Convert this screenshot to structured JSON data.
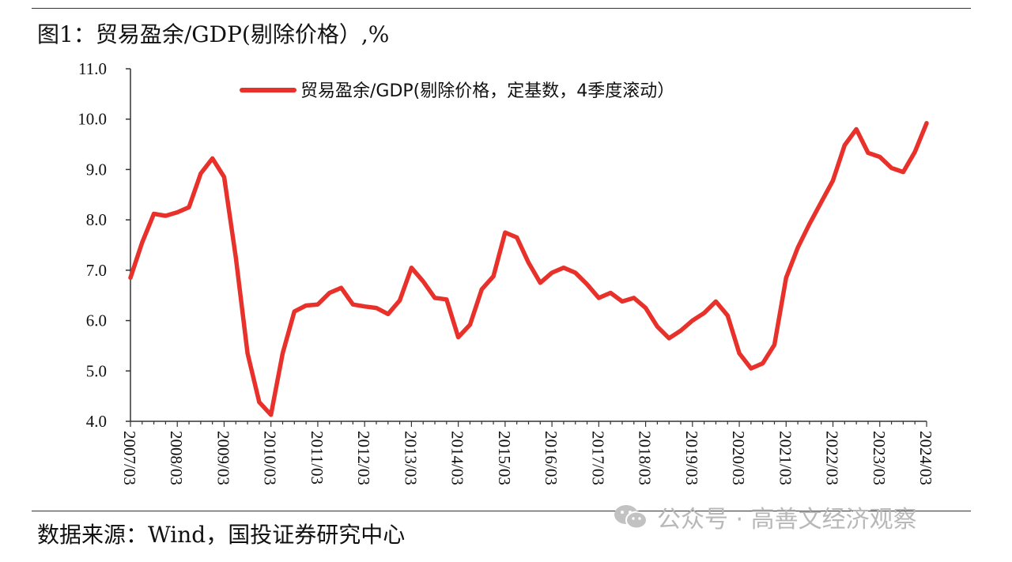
{
  "title": "图1：贸易盈余/GDP(剔除价格）,%",
  "source": "数据来源：Wind，国投证券研究中心",
  "watermark": {
    "text": "公众号 · 高善文经济观察",
    "icon": "wechat-icon"
  },
  "colors": {
    "series": "#e8312a",
    "axis": "#333333",
    "text": "#111111",
    "watermark": "#b8b8b8"
  },
  "chart_data": {
    "type": "line",
    "title": "图1：贸易盈余/GDP(剔除价格）,%",
    "xlabel": "",
    "ylabel": "",
    "ylim": [
      4.0,
      11.0
    ],
    "yticks": [
      "4.0",
      "5.0",
      "6.0",
      "7.0",
      "8.0",
      "9.0",
      "10.0",
      "11.0"
    ],
    "xticks": [
      "2007/03",
      "2008/03",
      "2009/03",
      "2010/03",
      "2011/03",
      "2012/03",
      "2013/03",
      "2014/03",
      "2015/03",
      "2016/03",
      "2017/03",
      "2018/03",
      "2019/03",
      "2020/03",
      "2021/03",
      "2022/03",
      "2023/03",
      "2024/03"
    ],
    "grid": false,
    "legend_position": "top-center",
    "series": [
      {
        "name": "贸易盈余/GDP(剔除价格，定基数，4季度滚动）",
        "color": "#e8312a",
        "x": [
          "2007/03",
          "2007/06",
          "2007/09",
          "2007/12",
          "2008/03",
          "2008/06",
          "2008/09",
          "2008/12",
          "2009/03",
          "2009/06",
          "2009/09",
          "2009/12",
          "2010/03",
          "2010/06",
          "2010/09",
          "2010/12",
          "2011/03",
          "2011/06",
          "2011/09",
          "2011/12",
          "2012/03",
          "2012/06",
          "2012/09",
          "2012/12",
          "2013/03",
          "2013/06",
          "2013/09",
          "2013/12",
          "2014/03",
          "2014/06",
          "2014/09",
          "2014/12",
          "2015/03",
          "2015/06",
          "2015/09",
          "2015/12",
          "2016/03",
          "2016/06",
          "2016/09",
          "2016/12",
          "2017/03",
          "2017/06",
          "2017/09",
          "2017/12",
          "2018/03",
          "2018/06",
          "2018/09",
          "2018/12",
          "2019/03",
          "2019/06",
          "2019/09",
          "2019/12",
          "2020/03",
          "2020/06",
          "2020/09",
          "2020/12",
          "2021/03",
          "2021/06",
          "2021/09",
          "2021/12",
          "2022/03",
          "2022/06",
          "2022/09",
          "2022/12",
          "2023/03",
          "2023/06",
          "2023/09",
          "2023/12",
          "2024/03"
        ],
        "values": [
          6.85,
          7.55,
          8.12,
          8.08,
          8.15,
          8.25,
          8.92,
          9.22,
          8.85,
          7.25,
          5.35,
          4.38,
          4.13,
          5.35,
          6.18,
          6.3,
          6.32,
          6.55,
          6.65,
          6.32,
          6.28,
          6.25,
          6.13,
          6.4,
          7.05,
          6.78,
          6.45,
          6.42,
          5.67,
          5.92,
          6.62,
          6.88,
          7.75,
          7.65,
          7.15,
          6.75,
          6.95,
          7.05,
          6.95,
          6.72,
          6.45,
          6.55,
          6.38,
          6.45,
          6.25,
          5.88,
          5.65,
          5.8,
          6.0,
          6.15,
          6.38,
          6.1,
          5.35,
          5.05,
          5.15,
          5.52,
          6.85,
          7.45,
          7.92,
          8.35,
          8.78,
          9.48,
          9.8,
          9.33,
          9.25,
          9.03,
          8.95,
          9.35,
          9.92
        ]
      }
    ]
  }
}
